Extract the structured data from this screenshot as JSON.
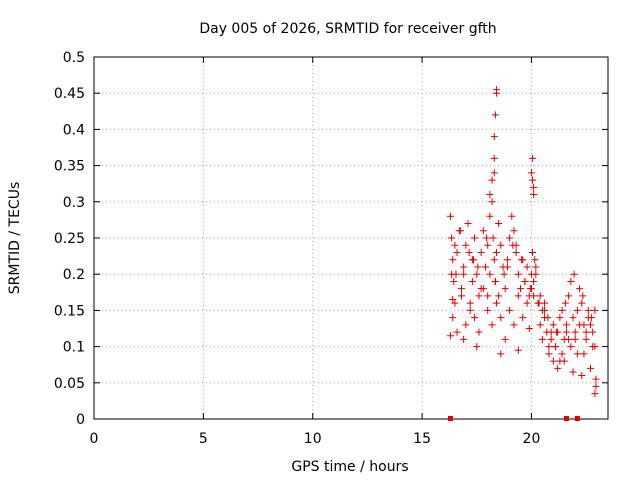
{
  "chart_data": {
    "type": "scatter",
    "title": "Day 005 of 2026, SRMTID for receiver gfth",
    "xlabel": "GPS time / hours",
    "ylabel": "SRMTID / TECUs",
    "xlim": [
      0,
      23.5
    ],
    "ylim": [
      0,
      0.5
    ],
    "xticks": [
      0,
      5,
      10,
      15,
      20
    ],
    "yticks": [
      0,
      0.05,
      0.1,
      0.15,
      0.2,
      0.25,
      0.3,
      0.35,
      0.4,
      0.45,
      0.5
    ],
    "xtick_labels": [
      "0",
      "5",
      "10",
      "15",
      "20"
    ],
    "ytick_labels": [
      "0",
      "0.05",
      "0.1",
      "0.15",
      "0.2",
      "0.25",
      "0.3",
      "0.35",
      "0.4",
      "0.45",
      "0.5"
    ],
    "grid": true,
    "marker": "+",
    "color": "#e00000",
    "series": [
      {
        "name": "SRMTID",
        "x": [
          16.3,
          16.35,
          16.4,
          16.45,
          16.5,
          16.55,
          16.6,
          16.7,
          16.8,
          16.9,
          17.0,
          17.1,
          17.2,
          17.3,
          17.35,
          17.4,
          17.5,
          17.6,
          17.7,
          17.8,
          17.9,
          18.0,
          18.1,
          18.2,
          18.25,
          18.3,
          18.35,
          18.4,
          18.5,
          18.6,
          18.7,
          18.8,
          18.9,
          19.0,
          19.1,
          19.2,
          19.3,
          19.4,
          19.5,
          19.6,
          19.7,
          19.8,
          19.9,
          20.0,
          20.05,
          20.1,
          20.15,
          20.2,
          20.3,
          20.4,
          20.5,
          20.6,
          20.7,
          20.8,
          20.9,
          21.0,
          21.1,
          21.2,
          21.3,
          21.4,
          21.5,
          21.6,
          21.7,
          21.8,
          21.9,
          22.0,
          22.1,
          22.2,
          22.3,
          22.4,
          22.5,
          22.6,
          22.7,
          22.8,
          22.9,
          16.4,
          16.6,
          16.8,
          17.0,
          17.2,
          17.4,
          17.6,
          17.8,
          18.0,
          18.2,
          18.4,
          18.6,
          18.8,
          19.0,
          19.2,
          19.4,
          19.6,
          19.8,
          20.0,
          20.2,
          20.4,
          20.6,
          20.8,
          21.0,
          21.2,
          21.4,
          21.6,
          21.8,
          22.0,
          22.2,
          22.4,
          22.6,
          22.8,
          16.5,
          16.9,
          17.3,
          17.7,
          18.1,
          18.5,
          18.9,
          19.3,
          19.7,
          20.1,
          20.5,
          20.9,
          21.3,
          21.7,
          22.1,
          22.5,
          22.9,
          16.35,
          16.75,
          17.15,
          17.55,
          17.95,
          18.35,
          18.75,
          19.15,
          19.55,
          19.95,
          20.35,
          20.75,
          21.15,
          21.55,
          21.95,
          22.35,
          22.75,
          18.3,
          18.3,
          18.35,
          18.4,
          18.4,
          18.3,
          18.2,
          18.1,
          20.0,
          20.05,
          20.1,
          20.05,
          20.1,
          16.3,
          16.4,
          16.9,
          17.5,
          18.0,
          18.6,
          19.4,
          19.9,
          20.6,
          21.1,
          21.5,
          21.9,
          22.3,
          22.7,
          22.95,
          22.95,
          22.9
        ],
        "y": [
          0.28,
          0.25,
          0.22,
          0.19,
          0.16,
          0.2,
          0.23,
          0.26,
          0.18,
          0.21,
          0.24,
          0.27,
          0.15,
          0.19,
          0.22,
          0.25,
          0.2,
          0.17,
          0.23,
          0.26,
          0.21,
          0.24,
          0.28,
          0.3,
          0.25,
          0.22,
          0.19,
          0.23,
          0.27,
          0.24,
          0.21,
          0.18,
          0.22,
          0.25,
          0.28,
          0.26,
          0.23,
          0.2,
          0.18,
          0.22,
          0.19,
          0.21,
          0.17,
          0.2,
          0.23,
          0.19,
          0.22,
          0.21,
          0.16,
          0.13,
          0.11,
          0.14,
          0.12,
          0.09,
          0.11,
          0.13,
          0.1,
          0.12,
          0.14,
          0.15,
          0.11,
          0.13,
          0.17,
          0.19,
          0.14,
          0.12,
          0.15,
          0.18,
          0.16,
          0.13,
          0.11,
          0.15,
          0.13,
          0.12,
          0.15,
          0.14,
          0.12,
          0.17,
          0.13,
          0.16,
          0.14,
          0.12,
          0.18,
          0.15,
          0.13,
          0.16,
          0.14,
          0.11,
          0.15,
          0.13,
          0.17,
          0.14,
          0.16,
          0.18,
          0.2,
          0.17,
          0.15,
          0.1,
          0.08,
          0.07,
          0.09,
          0.12,
          0.1,
          0.11,
          0.13,
          0.09,
          0.14,
          0.1,
          0.24,
          0.2,
          0.22,
          0.18,
          0.2,
          0.17,
          0.21,
          0.24,
          0.19,
          0.17,
          0.15,
          0.12,
          0.08,
          0.11,
          0.09,
          0.12,
          0.1,
          0.2,
          0.26,
          0.23,
          0.21,
          0.25,
          0.19,
          0.2,
          0.24,
          0.22,
          0.18,
          0.16,
          0.14,
          0.12,
          0.16,
          0.2,
          0.17,
          0.14,
          0.36,
          0.39,
          0.42,
          0.45,
          0.455,
          0.34,
          0.33,
          0.31,
          0.34,
          0.33,
          0.32,
          0.36,
          0.31,
          0.115,
          0.165,
          0.11,
          0.1,
          0.17,
          0.09,
          0.095,
          0.125,
          0.16,
          0.1,
          0.08,
          0.065,
          0.06,
          0.07,
          0.055,
          0.045,
          0.035
        ]
      }
    ],
    "zero_markers_x": [
      16.3,
      21.6,
      22.1
    ]
  }
}
